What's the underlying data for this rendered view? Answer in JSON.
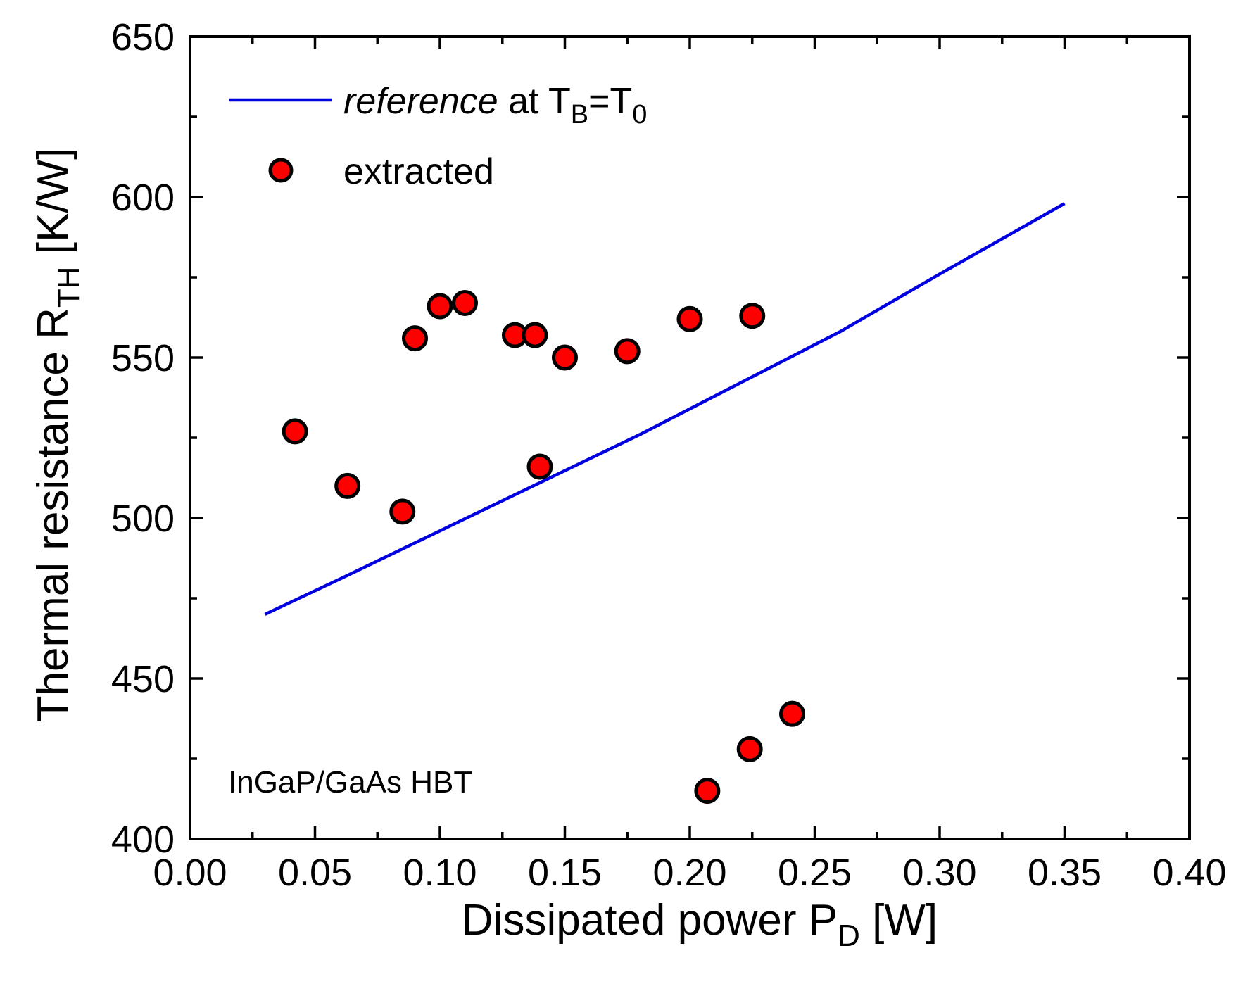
{
  "chart_data": {
    "type": "scatter",
    "xlabel": {
      "main": "Dissipated power P",
      "sub": "D",
      "unit": " [W]"
    },
    "ylabel": {
      "main": "Thermal resistance R",
      "sub": "TH",
      "unit": " [K/W]"
    },
    "xlim": [
      0.0,
      0.4
    ],
    "ylim": [
      400,
      650
    ],
    "x_ticks": [
      "0.00",
      "0.05",
      "0.10",
      "0.15",
      "0.20",
      "0.25",
      "0.30",
      "0.35",
      "0.40"
    ],
    "y_ticks": [
      "400",
      "450",
      "500",
      "550",
      "600",
      "650"
    ],
    "legend": {
      "position": "top-left",
      "entries": [
        {
          "italic": "reference",
          "text": " at T",
          "sub1": "B",
          "text2": "=T",
          "sub2": "0"
        },
        {
          "text": "extracted"
        }
      ]
    },
    "annotation": "InGaP/GaAs HBT",
    "series": [
      {
        "name": "reference at TB=T0",
        "kind": "line",
        "color": "#0000e0",
        "x": [
          0.03,
          0.06,
          0.1,
          0.14,
          0.18,
          0.22,
          0.26,
          0.3,
          0.35
        ],
        "y": [
          470,
          481,
          496,
          511,
          526,
          542,
          558,
          576,
          598
        ]
      },
      {
        "name": "extracted",
        "kind": "scatter",
        "color": "#ff0000",
        "x": [
          0.042,
          0.063,
          0.085,
          0.09,
          0.1,
          0.11,
          0.13,
          0.138,
          0.14,
          0.15,
          0.175,
          0.2,
          0.225,
          0.207,
          0.224,
          0.241
        ],
        "y": [
          527,
          510,
          502,
          556,
          566,
          567,
          557,
          557,
          516,
          550,
          552,
          562,
          563,
          415,
          428,
          439
        ]
      }
    ]
  }
}
